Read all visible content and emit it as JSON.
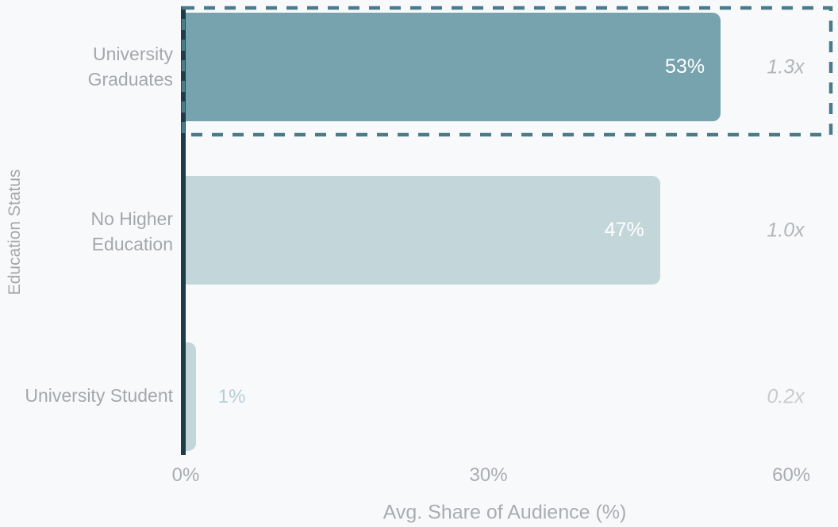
{
  "chart_data": {
    "type": "bar",
    "orientation": "horizontal",
    "title": "",
    "xlabel": "Avg. Share of Audience (%)",
    "ylabel": "Education Status",
    "categories": [
      "University Graduates",
      "No Higher Education",
      "University Student"
    ],
    "values": [
      53,
      47,
      1
    ],
    "value_labels": [
      "53%",
      "47%",
      "1%"
    ],
    "multipliers": [
      "1.3x",
      "1.0x",
      "0.2x"
    ],
    "highlighted_category": "University Graduates",
    "x_ticks": [
      {
        "value": 0,
        "label": "0%"
      },
      {
        "value": 30,
        "label": "30%"
      },
      {
        "value": 60,
        "label": "60%"
      }
    ],
    "xlim": [
      0,
      64
    ],
    "grid": false,
    "legend": false
  },
  "colors": {
    "background": "#f8f9fa",
    "bar_highlight": "#76a3ae",
    "bar_default": "#c3d6da",
    "axis_line": "#1e3b4a",
    "highlight_border": "#4a7b8a",
    "label_gray": "#a4a8ac",
    "tick_gray": "#a9adb1",
    "value_label_inside": "#ffffff",
    "value_label_outside": "#b6cdd6",
    "multiplier_gray": "#b2b6ba",
    "multiplier_light_gray": "#c8cbce"
  }
}
